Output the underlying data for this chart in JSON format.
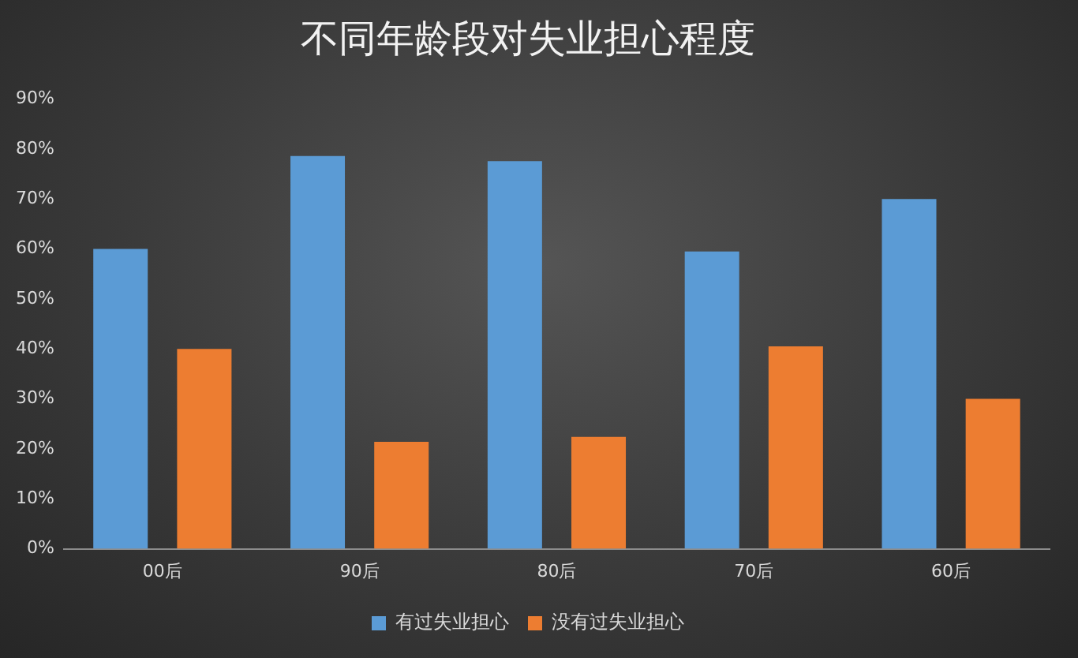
{
  "chart_data": {
    "type": "bar",
    "title": "不同年龄段对失业担心程度",
    "categories": [
      "00后",
      "90后",
      "80后",
      "70后",
      "60后"
    ],
    "series": [
      {
        "name": "有过失业担心",
        "color": "#5b9bd5",
        "values": [
          60,
          78.6,
          77.6,
          59.5,
          70
        ]
      },
      {
        "name": "没有过失业担心",
        "color": "#ed7d31",
        "values": [
          40,
          21.4,
          22.4,
          40.5,
          30
        ]
      }
    ],
    "ylim": [
      0,
      90
    ],
    "yticks": [
      {
        "value": 0,
        "label": "0%"
      },
      {
        "value": 10,
        "label": "10%"
      },
      {
        "value": 20,
        "label": "20%"
      },
      {
        "value": 30,
        "label": "30%"
      },
      {
        "value": 40,
        "label": "40%"
      },
      {
        "value": 50,
        "label": "50%"
      },
      {
        "value": 60,
        "label": "60%"
      },
      {
        "value": 70,
        "label": "70%"
      },
      {
        "value": 80,
        "label": "80%"
      },
      {
        "value": 90,
        "label": "90%"
      }
    ],
    "grid": false,
    "legend": "bottom"
  }
}
